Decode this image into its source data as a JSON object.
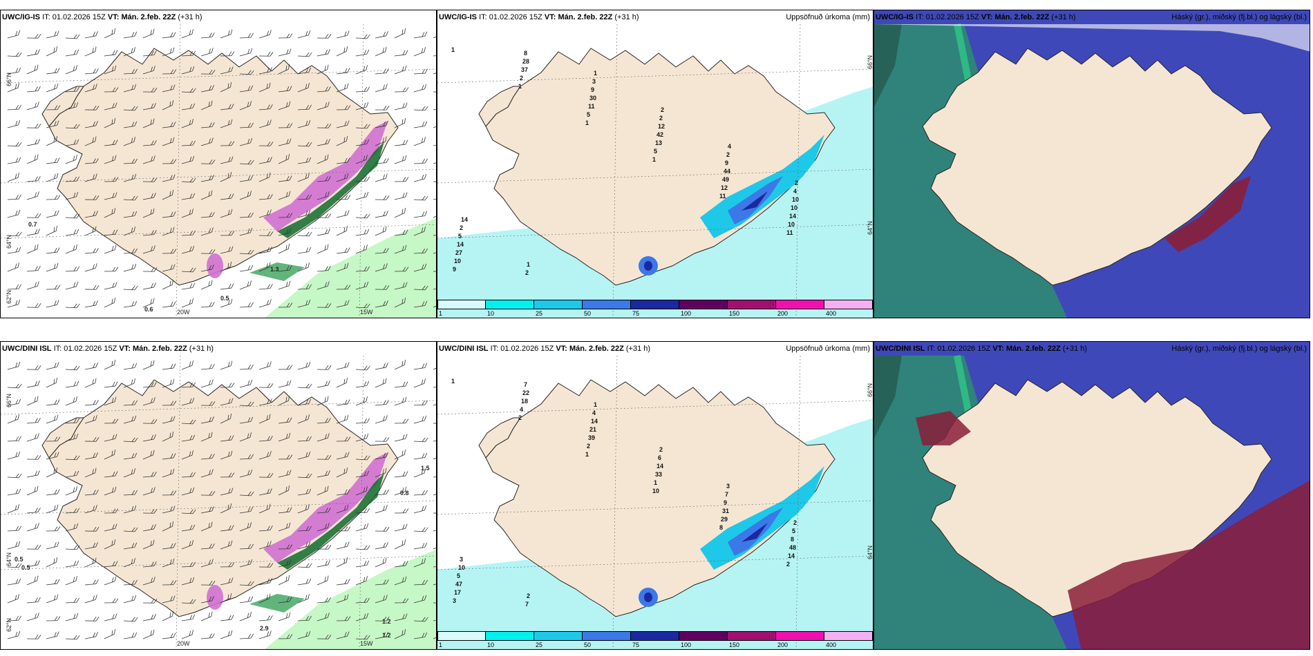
{
  "colors": {
    "land": "#f5e6d3",
    "sea": "#ffffff",
    "precip_light": "#c6f7c6",
    "precip_mid": "#39a35a",
    "precip_dark": "#0e6b2d",
    "snow_magenta": "#d070d0",
    "cloud_high": "#2e8a74",
    "cloud_mid": "#3f48b8",
    "cloud_low": "#8a1f3a"
  },
  "panels": [
    {
      "model": "UWC/IG-IS",
      "it_label": "IT:",
      "it_value": "01.02.2026 15Z",
      "vt_label": "VT: Mán. 2.feb. 22Z",
      "lead": "(+31 h)",
      "right_title": "",
      "labels": {
        "lat66": "66°N",
        "lat64": "64°N",
        "lat62": "62°N",
        "lon20": "20W",
        "lon15": "15W"
      },
      "values": [
        "0.7",
        "0.5",
        "0.6",
        "1.3",
        "0.5"
      ]
    },
    {
      "model": "UWC/IG-IS",
      "it_label": "IT:",
      "it_value": "01.02.2026 15Z",
      "vt_label": "VT: Mán. 2.feb. 22Z",
      "lead": "(+31 h)",
      "right_title": "Uppsöfnuð úrkoma (mm)",
      "labels": {
        "lat66": "66°N",
        "lat64": "64°N"
      },
      "values": [
        "1",
        "1",
        "1",
        "1",
        "11",
        "11",
        "9",
        "2",
        "5",
        "5",
        "12",
        "10",
        "10",
        "37",
        "11",
        "13",
        "49",
        "14",
        "27",
        "28",
        "30",
        "42",
        "44",
        "10",
        "14",
        "8",
        "9",
        "12",
        "9",
        "10",
        "5",
        "2",
        "3",
        "2",
        "2",
        "4",
        "2",
        "1",
        "1",
        "2",
        "4",
        "2",
        "14"
      ]
    },
    {
      "model": "UWC/IG-IS",
      "it_label": "IT:",
      "it_value": "01.02.2026 15Z",
      "vt_label": "VT: Mán. 2.feb. 22Z",
      "lead": "(+31 h)",
      "right_title": "Háský (gr.), miðský (fj.bl.) og lágský (bl.)",
      "labels": {},
      "values": []
    },
    {
      "model": "UWC/DINI ISL",
      "it_label": "IT:",
      "it_value": "01.02.2026 15Z",
      "vt_label": "VT: Mán. 2.feb. 22Z",
      "lead": "(+31 h)",
      "right_title": "",
      "labels": {
        "lat66": "66°N",
        "lat64": "64°N",
        "lat62": "62°N",
        "lon20": "20W",
        "lon15": "15W"
      },
      "values": [
        "0.5",
        "0.5",
        "1.5",
        "0.8",
        "2.9",
        "1.2",
        "1.2"
      ]
    },
    {
      "model": "UWC/DINI ISL",
      "it_label": "IT:",
      "it_value": "01.02.2026 15Z",
      "vt_label": "VT: Mán. 2.feb. 22Z",
      "lead": "(+31 h)",
      "right_title": "Uppsöfnuð úrkoma (mm)",
      "labels": {
        "lat66": "66°N",
        "lat64": "64°N"
      },
      "values": [
        "1",
        "2",
        "1",
        "10",
        "8",
        "2",
        "3",
        "4",
        "2",
        "1",
        "29",
        "14",
        "17",
        "18",
        "39",
        "33",
        "31",
        "48",
        "47",
        "22",
        "21",
        "14",
        "9",
        "8",
        "5",
        "7",
        "14",
        "6",
        "7",
        "5",
        "10",
        "7",
        "4",
        "2",
        "3",
        "2",
        "3",
        "2",
        "1"
      ]
    },
    {
      "model": "UWC/DINI ISL",
      "it_label": "IT:",
      "it_value": "01.02.2026 15Z",
      "vt_label": "VT: Mán. 2.feb. 22Z",
      "lead": "(+31 h)",
      "right_title": "Háský (gr.), miðský (fj.bl.) og lágský (bl.)",
      "labels": {},
      "values": []
    }
  ],
  "legend": {
    "ticks": [
      "1",
      "10",
      "25",
      "50",
      "75",
      "100",
      "150",
      "200",
      "400"
    ],
    "colors": [
      "#d9fbfb",
      "#00f0f0",
      "#1ec8e8",
      "#3c78e8",
      "#1c28a0",
      "#600060",
      "#a01070",
      "#f010b0",
      "#f4b0f0"
    ]
  }
}
